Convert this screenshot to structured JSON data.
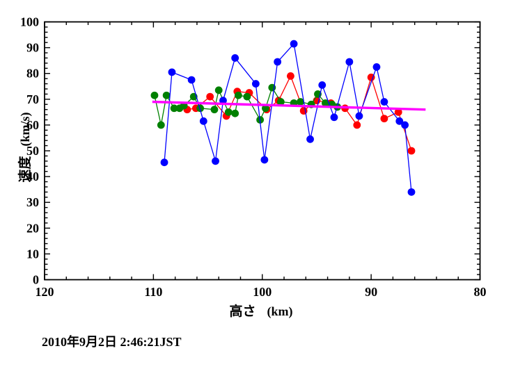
{
  "chart_data": {
    "type": "scatter",
    "title": "",
    "xlabel": "高さ",
    "xunit": "(km)",
    "ylabel": "速度",
    "yunit": "(km/s)",
    "timestamp": "2010年9月2日 2:46:21JST",
    "xlim": [
      120,
      80
    ],
    "ylim": [
      0,
      100
    ],
    "x_ticks": [
      120,
      110,
      100,
      90,
      80
    ],
    "y_ticks": [
      0,
      10,
      20,
      30,
      40,
      50,
      60,
      70,
      80,
      90,
      100
    ],
    "x_minor_step": 2,
    "y_minor_step": 2,
    "grid": false,
    "legend": "none",
    "axis_color": "#000000",
    "background": "#ffffff",
    "series": [
      {
        "name": "series-red",
        "color": "#ff0000",
        "markers": true,
        "marker_radius": 5.4,
        "line_width": 1.3,
        "points": [
          [
            106.9,
            66.0
          ],
          [
            106.1,
            66.5
          ],
          [
            104.8,
            71.0
          ],
          [
            103.3,
            63.5
          ],
          [
            102.3,
            73.0
          ],
          [
            101.2,
            72.5
          ],
          [
            99.6,
            66.0
          ],
          [
            98.5,
            69.5
          ],
          [
            97.4,
            79.0
          ],
          [
            96.2,
            65.5
          ],
          [
            95.0,
            69.5
          ],
          [
            93.7,
            68.5
          ],
          [
            92.4,
            66.5
          ],
          [
            91.3,
            60.0
          ],
          [
            90.0,
            78.5
          ],
          [
            88.8,
            62.5
          ],
          [
            87.5,
            65.0
          ],
          [
            86.3,
            50.0
          ]
        ]
      },
      {
        "name": "series-green",
        "color": "#008000",
        "markers": true,
        "marker_radius": 5.4,
        "line_width": 1.3,
        "points": [
          [
            109.9,
            71.5
          ],
          [
            109.3,
            60.0
          ],
          [
            108.8,
            71.5
          ],
          [
            108.1,
            66.5
          ],
          [
            107.6,
            66.5
          ],
          [
            107.2,
            67.5
          ],
          [
            106.3,
            71.0
          ],
          [
            105.7,
            66.5
          ],
          [
            104.4,
            66.0
          ],
          [
            104.0,
            73.5
          ],
          [
            103.1,
            65.0
          ],
          [
            102.5,
            64.5
          ],
          [
            102.2,
            71.5
          ],
          [
            101.4,
            71.0
          ],
          [
            100.2,
            62.0
          ],
          [
            99.7,
            66.5
          ],
          [
            99.1,
            74.5
          ],
          [
            98.3,
            69.0
          ],
          [
            97.1,
            68.5
          ],
          [
            96.5,
            69.0
          ],
          [
            95.5,
            68.0
          ],
          [
            94.9,
            72.0
          ],
          [
            94.2,
            68.5
          ],
          [
            93.6,
            68.0
          ],
          [
            93.1,
            67.0
          ]
        ]
      },
      {
        "name": "series-blue",
        "color": "#0000ff",
        "markers": true,
        "marker_radius": 5.4,
        "line_width": 1.3,
        "points": [
          [
            109.0,
            45.5
          ],
          [
            108.3,
            80.5
          ],
          [
            106.5,
            77.5
          ],
          [
            105.4,
            61.5
          ],
          [
            104.3,
            46.0
          ],
          [
            103.6,
            69.5
          ],
          [
            102.5,
            86.0
          ],
          [
            100.6,
            76.0
          ],
          [
            99.8,
            46.5
          ],
          [
            98.6,
            84.5
          ],
          [
            97.1,
            91.5
          ],
          [
            95.6,
            54.5
          ],
          [
            94.5,
            75.5
          ],
          [
            93.4,
            63.0
          ],
          [
            92.0,
            84.5
          ],
          [
            91.1,
            63.5
          ],
          [
            89.5,
            82.5
          ],
          [
            88.8,
            69.0
          ],
          [
            87.4,
            61.5
          ],
          [
            86.9,
            60.0
          ],
          [
            86.3,
            34.0
          ]
        ]
      },
      {
        "name": "fit-line",
        "color": "#ff00ff",
        "markers": false,
        "marker_radius": 0,
        "line_width": 3.4,
        "points": [
          [
            110.1,
            69.0
          ],
          [
            85.0,
            66.0
          ]
        ]
      }
    ]
  }
}
